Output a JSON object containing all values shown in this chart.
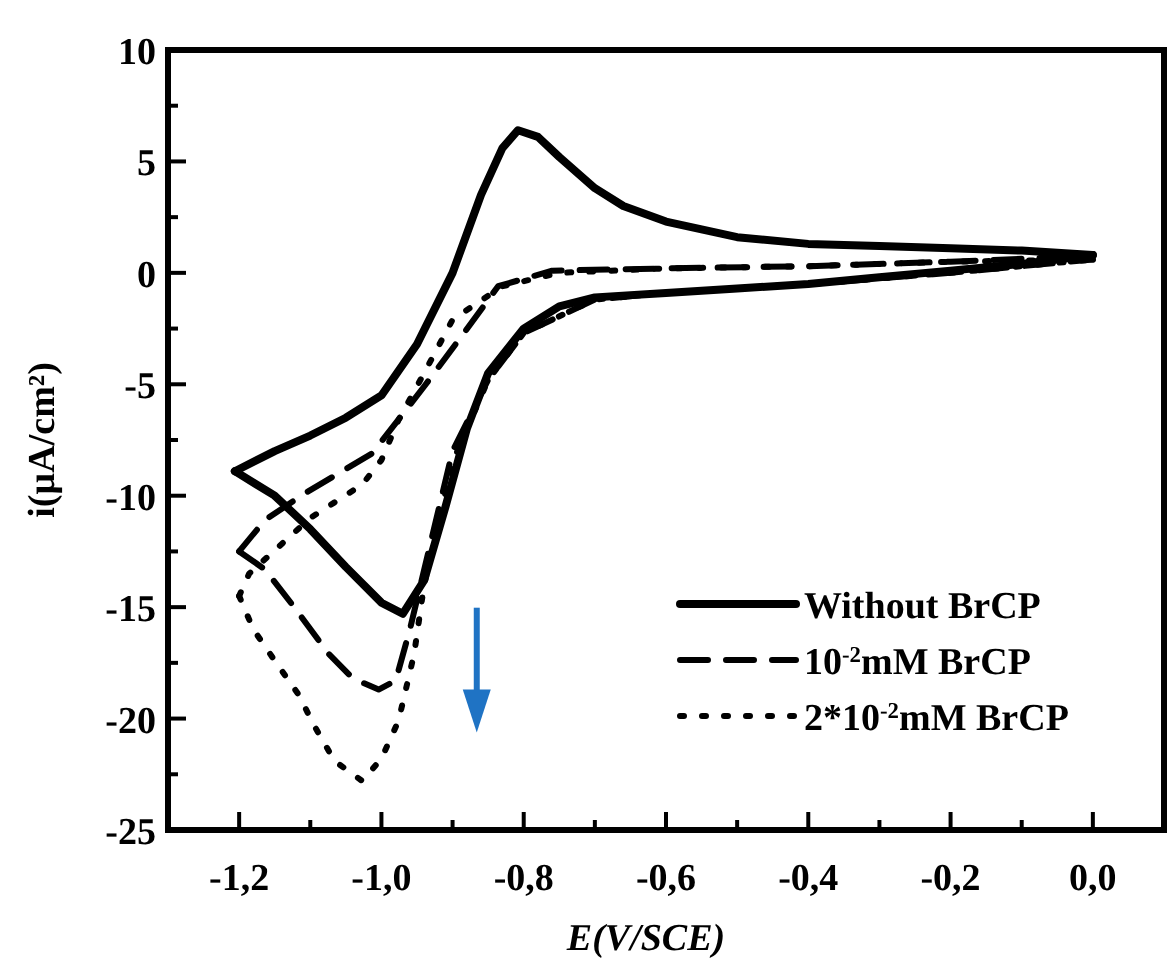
{
  "chart_data": {
    "type": "line",
    "xlabel": "E(V/SCE)",
    "ylabel": "i(µA/cm²)",
    "xlim": [
      -1.3,
      0.1
    ],
    "ylim": [
      -25,
      10
    ],
    "xticks": [
      {
        "value": -1.2,
        "label": "-1,2"
      },
      {
        "value": -1.1,
        "label": null
      },
      {
        "value": -1.0,
        "label": "-1,0"
      },
      {
        "value": -0.9,
        "label": null
      },
      {
        "value": -0.8,
        "label": "-0,8"
      },
      {
        "value": -0.7,
        "label": null
      },
      {
        "value": -0.6,
        "label": "-0,6"
      },
      {
        "value": -0.5,
        "label": null
      },
      {
        "value": -0.4,
        "label": "-0,4"
      },
      {
        "value": -0.3,
        "label": null
      },
      {
        "value": -0.2,
        "label": "-0,2"
      },
      {
        "value": -0.1,
        "label": null
      },
      {
        "value": 0,
        "label": "0,0"
      }
    ],
    "yticks": [
      -25,
      {
        "value": -22.5,
        "label": null
      },
      -20,
      {
        "value": -17.5,
        "label": null
      },
      -15,
      {
        "value": -12.5,
        "label": null
      },
      -10,
      {
        "value": -7.5,
        "label": null
      },
      -5,
      {
        "value": -2.5,
        "label": null
      },
      0,
      {
        "value": 2.5,
        "label": null
      },
      5,
      {
        "value": 7.5,
        "label": null
      },
      10
    ],
    "grid": false,
    "legend": "bottom right",
    "marker": "none",
    "series": [
      {
        "name": "Without BrCP",
        "color": "#000000",
        "line_style": "solid",
        "x": [
          -1.206,
          -1.15,
          -1.1,
          -1.05,
          -1.0,
          -0.97,
          -0.94,
          -0.91,
          -0.88,
          -0.85,
          -0.8,
          -0.75,
          -0.7,
          -0.6,
          -0.5,
          -0.4,
          -0.3,
          -0.2,
          -0.1,
          0
        ],
        "values": [
          -8.9,
          -10,
          -11.5,
          -13.2,
          -14.8,
          -15.3,
          -13.8,
          -10.5,
          -7,
          -4.5,
          -2.5,
          -1.5,
          -1.1,
          -0.9,
          -0.7,
          -0.5,
          -0.2,
          0.1,
          0.4,
          0.8
        ]
      },
      {
        "color": "#000000",
        "line_style": "solid",
        "x": [
          -1.206,
          -1.15,
          -1.1,
          -1.05,
          -1.0,
          -0.95,
          -0.9,
          -0.86,
          -0.83,
          -0.808,
          -0.78,
          -0.75,
          -0.7,
          -0.66,
          -0.6,
          -0.5,
          -0.4,
          -0.3,
          -0.2,
          -0.1,
          0
        ],
        "values": [
          -8.9,
          -8,
          -7.3,
          -6.5,
          -5.5,
          -3.2,
          0,
          3.5,
          5.6,
          6.4,
          6.1,
          5.2,
          3.8,
          3,
          2.3,
          1.6,
          1.3,
          1.2,
          1.1,
          1,
          0.8
        ]
      },
      {
        "name": "10$^{-2}$mM BrCP",
        "color": "#000000",
        "line_style": "dashed",
        "x": [
          -1.2,
          -1.164,
          -1.125,
          -1.074,
          -1.04,
          -1.004,
          -0.98,
          -0.96,
          -0.93,
          -0.9,
          -0.85,
          -0.8,
          -0.7,
          -0.6,
          -0.4,
          -0.2,
          0
        ],
        "values": [
          -12.5,
          -13.3,
          -14.9,
          -17.1,
          -18.2,
          -18.7,
          -18.3,
          -16,
          -12,
          -8,
          -4.8,
          -2.7,
          -1.2,
          -0.9,
          -0.5,
          0,
          0.6
        ]
      },
      {
        "color": "#000000",
        "line_style": "dashed",
        "x": [
          -1.2,
          -1.164,
          -1.108,
          -1.013,
          -0.94,
          -0.884,
          -0.836,
          -0.76,
          -0.6,
          -0.4,
          -0.2,
          -0.05,
          0
        ],
        "values": [
          -12.5,
          -11.1,
          -9.9,
          -8.1,
          -5.1,
          -2.7,
          -0.6,
          0.1,
          0.2,
          0.3,
          0.5,
          0.7,
          0.6
        ]
      },
      {
        "name": "2*10$^{-2}$mM BrCP",
        "color": "#000000",
        "line_style": "dotted",
        "x": [
          -1.2,
          -1.18,
          -1.15,
          -1.117,
          -1.093,
          -1.066,
          -1.027,
          -1.0,
          -0.976,
          -0.954,
          -0.94,
          -0.9,
          -0.85,
          -0.8,
          -0.7,
          -0.6,
          -0.4,
          -0.2,
          0
        ],
        "values": [
          -14.5,
          -16,
          -17.4,
          -18.9,
          -20.4,
          -21.9,
          -22.8,
          -21.8,
          -20.1,
          -17.1,
          -14,
          -8.5,
          -4.8,
          -2.7,
          -1.2,
          -0.9,
          -0.5,
          0,
          0.6
        ]
      },
      {
        "color": "#000000",
        "line_style": "dotted",
        "x": [
          -1.2,
          -1.186,
          -1.1,
          -1.027,
          -1.0,
          -0.976,
          -0.94,
          -0.9,
          -0.83,
          -0.75,
          -0.6,
          -0.4,
          -0.2,
          0
        ],
        "values": [
          -14.5,
          -13.5,
          -11,
          -9.5,
          -8.4,
          -6.6,
          -4.5,
          -2.1,
          -0.6,
          0,
          0.2,
          0.3,
          0.5,
          0.6
        ]
      }
    ]
  }
}
